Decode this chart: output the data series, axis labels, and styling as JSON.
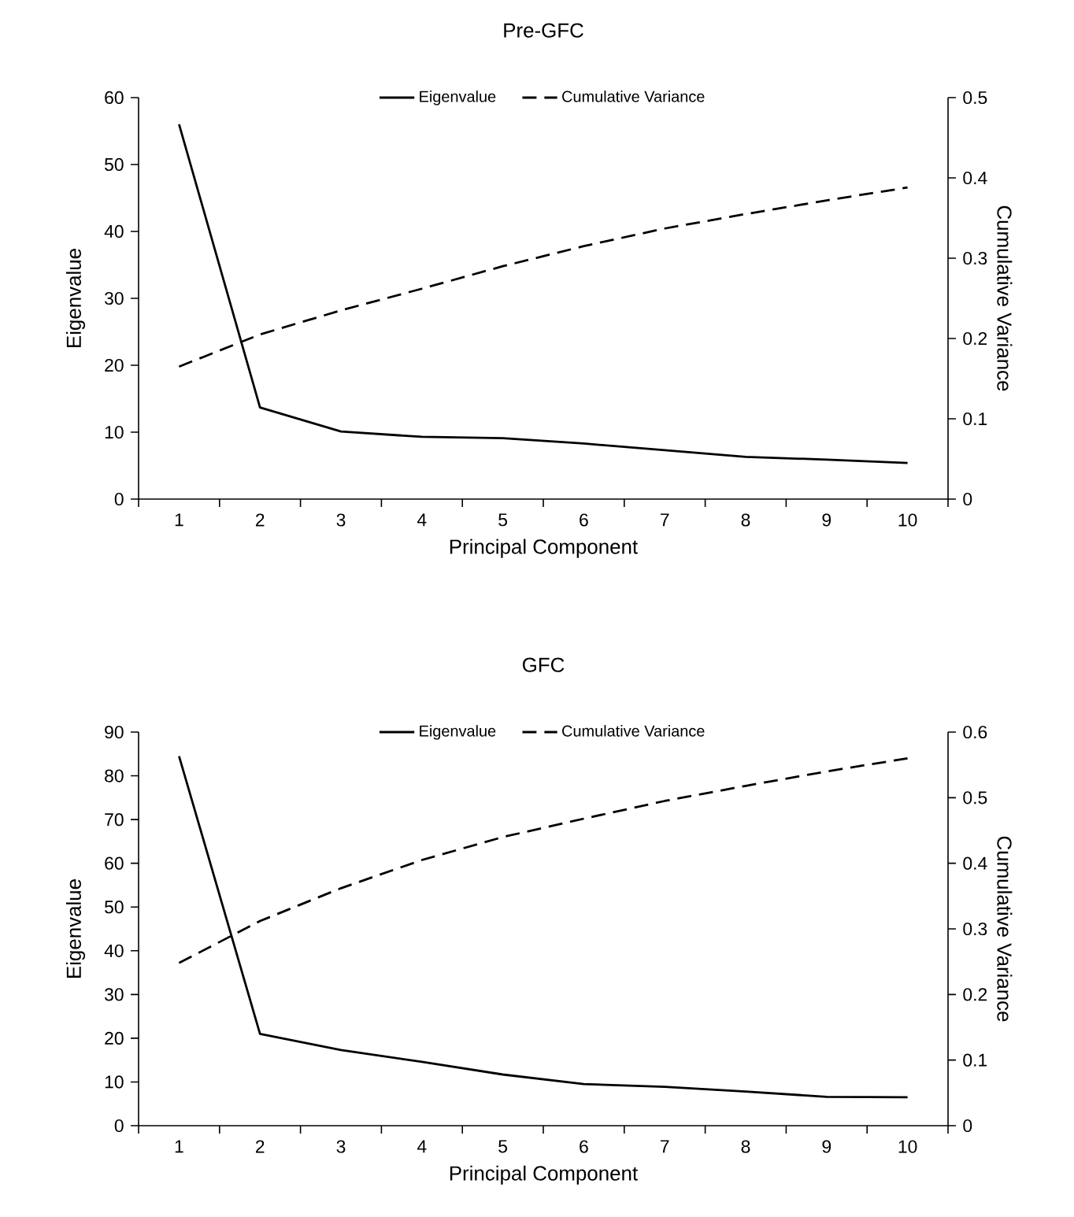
{
  "chart_data": [
    {
      "type": "line",
      "title": "Pre-GFC",
      "xlabel": "Principal Component",
      "ylabel": "Eigenvalue",
      "y2label": "Cumulative Variance",
      "categories": [
        "1",
        "2",
        "3",
        "4",
        "5",
        "6",
        "7",
        "8",
        "9",
        "10"
      ],
      "series": [
        {
          "name": "Eigenvalue",
          "color": "#000000",
          "line_style": "solid",
          "values": [
            56,
            13.7,
            10.1,
            9.3,
            9.1,
            8.3,
            7.3,
            6.3,
            5.9,
            5.4
          ]
        },
        {
          "name": "Cumulative Variance",
          "color": "#000000",
          "line_style": "dashed",
          "axis": "y2",
          "values": [
            0.165,
            0.205,
            0.235,
            0.262,
            0.29,
            0.315,
            0.337,
            0.355,
            0.372,
            0.388
          ]
        }
      ],
      "ylim": [
        0,
        60
      ],
      "yticks": [
        0,
        10,
        20,
        30,
        40,
        50,
        60
      ],
      "y2lim": [
        0,
        0.5
      ],
      "y2ticks": [
        0,
        0.1,
        0.2,
        0.3,
        0.4,
        0.5
      ],
      "legend": "top"
    },
    {
      "type": "line",
      "title": "GFC",
      "xlabel": "Principal Component",
      "ylabel": "Eigenvalue",
      "y2label": "Cumulative Variance",
      "categories": [
        "1",
        "2",
        "3",
        "4",
        "5",
        "6",
        "7",
        "8",
        "9",
        "10"
      ],
      "series": [
        {
          "name": "Eigenvalue",
          "color": "#000000",
          "line_style": "solid",
          "values": [
            84.5,
            21,
            17.3,
            14.6,
            11.7,
            9.5,
            8.9,
            7.8,
            6.6,
            6.5
          ]
        },
        {
          "name": "Cumulative Variance",
          "color": "#000000",
          "line_style": "dashed",
          "axis": "y2",
          "values": [
            0.248,
            0.312,
            0.362,
            0.405,
            0.44,
            0.468,
            0.495,
            0.518,
            0.54,
            0.56
          ]
        }
      ],
      "ylim": [
        0,
        90
      ],
      "yticks": [
        0,
        10,
        20,
        30,
        40,
        50,
        60,
        70,
        80,
        90
      ],
      "y2lim": [
        0,
        0.6
      ],
      "y2ticks": [
        0,
        0.1,
        0.2,
        0.3,
        0.4,
        0.5,
        0.6
      ],
      "legend": "top"
    }
  ]
}
